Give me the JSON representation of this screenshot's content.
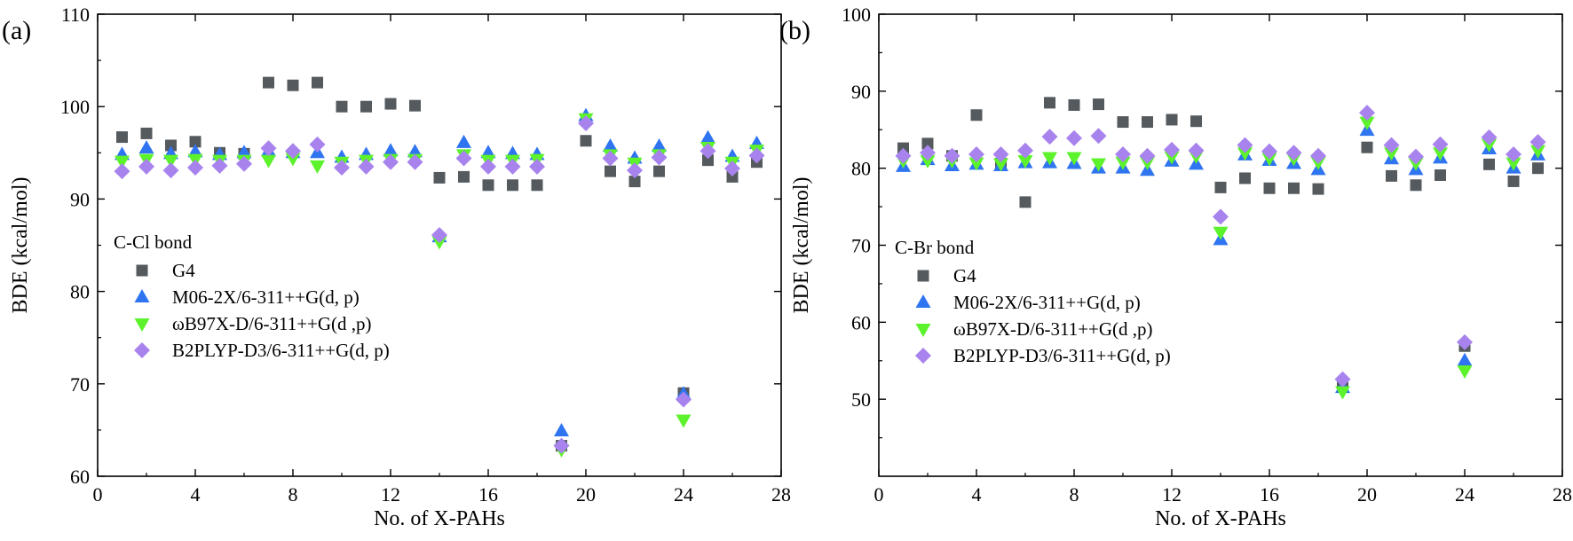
{
  "colors": {
    "G4": "#545a5e",
    "M06": "#2f74f0",
    "wB97": "#5cf22c",
    "B2PLYP": "#a883ee"
  },
  "chart_data": [
    {
      "type": "scatter",
      "panel_label": "(a)",
      "title": "",
      "xlabel": "No. of X-PAHs",
      "ylabel": "BDE (kcal/mol)",
      "xlim": [
        0,
        28
      ],
      "ylim": [
        60,
        110
      ],
      "xticks": [
        0,
        4,
        8,
        12,
        16,
        20,
        24,
        28
      ],
      "yticks": [
        60,
        70,
        80,
        90,
        100,
        110
      ],
      "grid": false,
      "legend_title": "C-Cl bond",
      "legend_position": "center-left",
      "series": [
        {
          "name": "G4",
          "marker": "square",
          "color_key": "G4",
          "x": [
            1,
            2,
            3,
            4,
            5,
            6,
            7,
            8,
            9,
            10,
            11,
            12,
            13,
            14,
            15,
            16,
            17,
            18,
            19,
            20,
            21,
            22,
            23,
            24,
            25,
            26,
            27
          ],
          "y": [
            96.7,
            97.1,
            95.8,
            96.2,
            95.0,
            94.9,
            102.6,
            102.3,
            102.6,
            100.0,
            100.0,
            100.3,
            100.1,
            92.3,
            92.4,
            91.5,
            91.5,
            91.5,
            63.3,
            96.3,
            93.0,
            91.9,
            93.0,
            69.0,
            94.2,
            92.4,
            94.0
          ]
        },
        {
          "name": "M06-2X/6-311++G(d, p)",
          "marker": "triangle-up",
          "color_key": "M06",
          "x": [
            1,
            2,
            3,
            4,
            5,
            6,
            7,
            8,
            9,
            10,
            11,
            12,
            13,
            14,
            15,
            16,
            17,
            18,
            19,
            20,
            21,
            22,
            23,
            24,
            25,
            26,
            27
          ],
          "y": [
            94.8,
            95.5,
            94.9,
            95.1,
            94.8,
            95.0,
            95.2,
            95.0,
            95.0,
            94.5,
            94.8,
            95.2,
            95.1,
            85.9,
            96.1,
            95.0,
            94.9,
            94.8,
            64.9,
            99.0,
            95.7,
            94.4,
            95.7,
            68.9,
            96.6,
            94.6,
            96.0
          ]
        },
        {
          "name": "ωB97X-D/6-311++G(d ,p)",
          "marker": "triangle-down",
          "color_key": "wB97",
          "x": [
            1,
            2,
            3,
            4,
            5,
            6,
            7,
            8,
            9,
            10,
            11,
            12,
            13,
            14,
            15,
            16,
            17,
            18,
            19,
            20,
            21,
            22,
            23,
            24,
            25,
            26,
            27
          ],
          "y": [
            94.1,
            94.3,
            94.2,
            94.3,
            94.2,
            94.2,
            94.2,
            94.4,
            93.6,
            94.0,
            94.2,
            94.3,
            94.3,
            85.4,
            94.8,
            94.2,
            94.2,
            94.3,
            62.9,
            98.7,
            94.8,
            93.9,
            94.8,
            66.1,
            95.6,
            94.0,
            95.3
          ]
        },
        {
          "name": "B2PLYP-D3/6-311++G(d, p)",
          "marker": "diamond",
          "color_key": "B2PLYP",
          "x": [
            1,
            2,
            3,
            4,
            5,
            6,
            7,
            8,
            9,
            10,
            11,
            12,
            13,
            14,
            15,
            16,
            17,
            18,
            19,
            20,
            21,
            22,
            23,
            24,
            25,
            26,
            27
          ],
          "y": [
            93.0,
            93.5,
            93.1,
            93.4,
            93.6,
            93.8,
            95.5,
            95.2,
            95.9,
            93.4,
            93.5,
            94.0,
            94.0,
            86.1,
            94.4,
            93.5,
            93.5,
            93.5,
            63.3,
            98.2,
            94.4,
            93.1,
            94.5,
            68.3,
            95.2,
            93.3,
            94.7
          ]
        }
      ]
    },
    {
      "type": "scatter",
      "panel_label": "(b)",
      "title": "",
      "xlabel": "No. of X-PAHs",
      "ylabel": "BDE (kcal/mol)",
      "xlim": [
        0,
        28
      ],
      "ylim": [
        40,
        100
      ],
      "xticks": [
        0,
        4,
        8,
        12,
        16,
        20,
        24,
        28
      ],
      "yticks": [
        50,
        60,
        70,
        80,
        90,
        100
      ],
      "grid": false,
      "legend_title": "C-Br bond",
      "legend_position": "center-left",
      "series": [
        {
          "name": "G4",
          "marker": "square",
          "color_key": "G4",
          "x": [
            1,
            2,
            3,
            4,
            5,
            6,
            7,
            8,
            9,
            10,
            11,
            12,
            13,
            14,
            15,
            16,
            17,
            18,
            19,
            20,
            21,
            22,
            23,
            24,
            25,
            26,
            27
          ],
          "y": [
            82.6,
            83.2,
            81.6,
            86.9,
            80.6,
            75.6,
            88.5,
            88.2,
            88.3,
            86.0,
            86.0,
            86.3,
            86.1,
            77.5,
            78.7,
            77.4,
            77.4,
            77.3,
            51.9,
            82.7,
            79.0,
            77.8,
            79.1,
            56.9,
            80.5,
            78.3,
            80.0
          ]
        },
        {
          "name": "M06-2X/6-311++G(d, p)",
          "marker": "triangle-up",
          "color_key": "M06",
          "x": [
            1,
            2,
            3,
            4,
            5,
            6,
            7,
            8,
            9,
            10,
            11,
            12,
            13,
            14,
            15,
            16,
            17,
            18,
            19,
            20,
            21,
            22,
            23,
            24,
            25,
            26,
            27
          ],
          "y": [
            80.2,
            81.1,
            80.3,
            80.5,
            80.3,
            80.7,
            80.7,
            80.6,
            80.0,
            80.0,
            79.7,
            80.9,
            80.5,
            70.7,
            81.7,
            81.0,
            80.6,
            79.8,
            51.5,
            84.9,
            81.2,
            79.8,
            81.3,
            55.0,
            82.5,
            80.0,
            81.7
          ]
        },
        {
          "name": "ωB97X-D/6-311++G(d ,p)",
          "marker": "triangle-down",
          "color_key": "wB97",
          "x": [
            1,
            2,
            3,
            4,
            5,
            6,
            7,
            8,
            9,
            10,
            11,
            12,
            13,
            14,
            15,
            16,
            17,
            18,
            19,
            20,
            21,
            22,
            23,
            24,
            25,
            26,
            27
          ],
          "y": [
            81.0,
            81.0,
            81.0,
            80.7,
            80.6,
            81.0,
            81.4,
            81.4,
            80.6,
            80.8,
            80.8,
            81.5,
            81.6,
            71.7,
            82.0,
            81.3,
            81.3,
            80.8,
            51.0,
            86.0,
            82.0,
            80.7,
            82.0,
            53.7,
            83.1,
            80.7,
            82.3
          ]
        },
        {
          "name": "B2PLYP-D3/6-311++G(d, p)",
          "marker": "diamond",
          "color_key": "B2PLYP",
          "x": [
            1,
            2,
            3,
            4,
            5,
            6,
            7,
            8,
            9,
            10,
            11,
            12,
            13,
            14,
            15,
            16,
            17,
            18,
            19,
            20,
            21,
            22,
            23,
            24,
            25,
            26,
            27
          ],
          "y": [
            81.6,
            82.0,
            81.6,
            81.8,
            81.8,
            82.3,
            84.1,
            83.9,
            84.2,
            81.8,
            81.6,
            82.4,
            82.3,
            73.7,
            83.0,
            82.2,
            82.0,
            81.6,
            52.6,
            87.2,
            83.0,
            81.5,
            83.1,
            57.4,
            84.0,
            81.8,
            83.4
          ]
        }
      ]
    }
  ]
}
